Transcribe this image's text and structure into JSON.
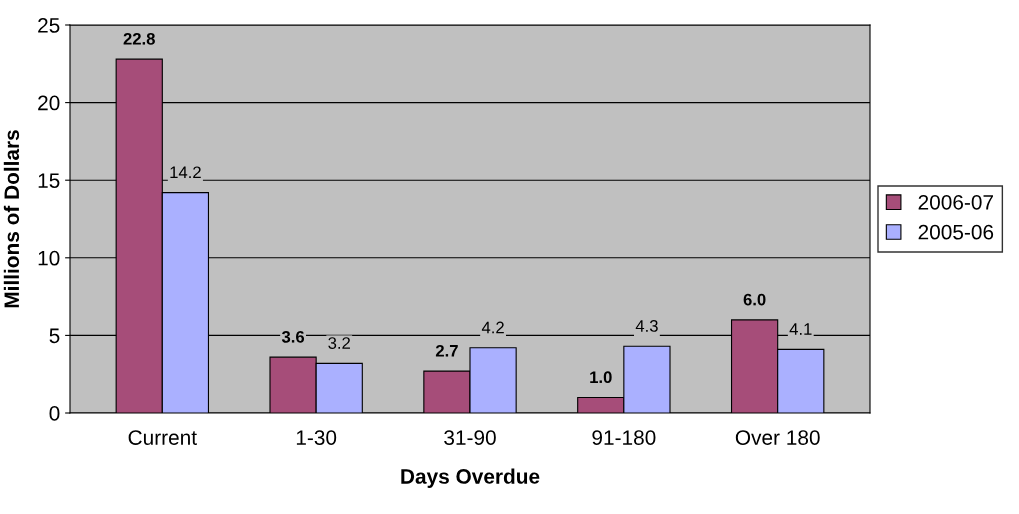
{
  "chart_data": {
    "type": "bar",
    "xlabel": "Days Overdue",
    "ylabel": "Millions of Dollars",
    "categories": [
      "Current",
      "1-30",
      "31-90",
      "91-180",
      "Over 180"
    ],
    "series": [
      {
        "name": "2006-07",
        "color": "#a64d79",
        "values": [
          22.8,
          3.6,
          2.7,
          1.0,
          6.0
        ],
        "value_labels": [
          "22.8",
          "3.6",
          "2.7",
          "1.0",
          "6.0"
        ]
      },
      {
        "name": "2005-06",
        "color": "#aab0ff",
        "values": [
          14.2,
          3.2,
          4.2,
          4.3,
          4.1
        ],
        "value_labels": [
          "14.2",
          "3.2",
          "4.2",
          "4.3",
          "4.1"
        ]
      }
    ],
    "ylim": [
      0,
      25
    ],
    "yticks": [
      0,
      5,
      10,
      15,
      20,
      25
    ],
    "grid": "y",
    "legend": "right"
  }
}
